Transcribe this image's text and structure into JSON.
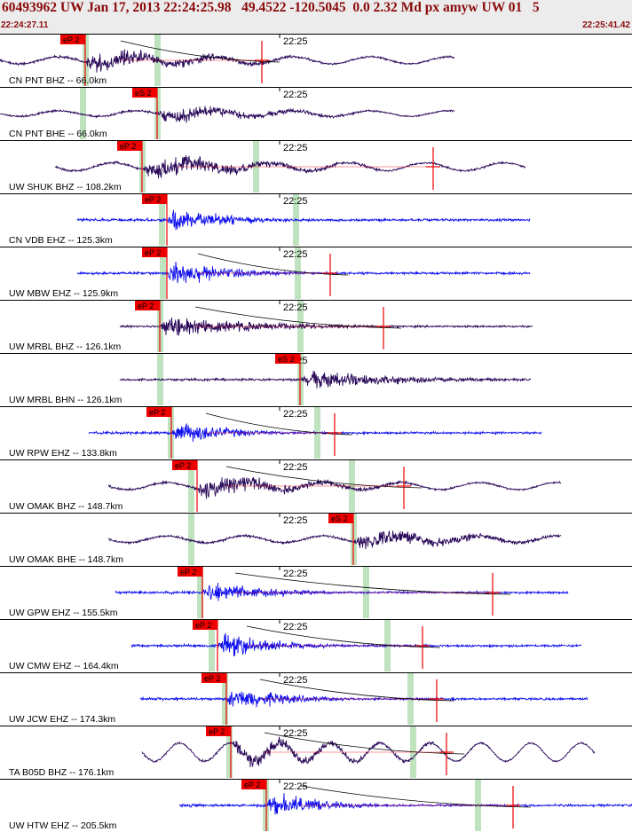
{
  "header": {
    "title": "60493962 UW Jan 17, 2013 22:24:25.98   49.4522 -120.5045  0.0 2.32 Md px amyw UW 01   5",
    "start_time": "22:24:27.11",
    "end_time": "22:25:41.42"
  },
  "minute_label": "22:25",
  "colors": {
    "broadband": "#2a0a5a",
    "short_period": "#1010ee",
    "pick_box": "#ee0000",
    "pick_line": "#ee0000",
    "predicted_window": "#bfe3bf",
    "title": "#8b0a0a"
  },
  "traces": [
    {
      "label": "CN PNT BHZ -- 66.0km",
      "color": "broadband",
      "pick": "eP 2",
      "window": [
        0,
        512
      ],
      "phase": [
        96,
        177
      ],
      "onset": 96,
      "amp": 0.9,
      "char": "surface",
      "extra": {
        "x": 295,
        "type": "end"
      },
      "curve": true
    },
    {
      "label": "CN PNT BHE -- 66.0km",
      "color": "broadband",
      "pick": "eS 2",
      "window": [
        0,
        512
      ],
      "phase": [
        93,
        177
      ],
      "onset": 177,
      "amp": 0.7,
      "char": "surface"
    },
    {
      "label": "UW SHUK BHZ -- 108.2km",
      "color": "broadband",
      "pick": "eP 2",
      "window": [
        62,
        592
      ],
      "phase": [
        160,
        288
      ],
      "onset": 160,
      "amp": 1.0,
      "char": "surface",
      "extra": {
        "x": 488,
        "type": "end"
      }
    },
    {
      "label": "CN VDB EHZ -- 125.3km",
      "color": "short_period",
      "pick": "eP 2",
      "window": [
        87,
        597
      ],
      "phase": [
        182,
        333
      ],
      "onset": 188,
      "amp": 0.95,
      "char": "sp"
    },
    {
      "label": "UW MBW EHZ -- 125.9km",
      "color": "short_period",
      "pick": "eP 2",
      "window": [
        87,
        597
      ],
      "phase": [
        183,
        335
      ],
      "onset": 188,
      "amp": 0.95,
      "char": "sp",
      "extra": {
        "x": 372,
        "type": "end"
      },
      "curve": true
    },
    {
      "label": "UW MRBL BHZ -- 126.1km",
      "color": "broadband",
      "pick": "eP 2",
      "window": [
        135,
        600
      ],
      "phase": [
        180,
        338
      ],
      "onset": 180,
      "amp": 0.9,
      "char": "bb",
      "extra": {
        "x": 432,
        "type": "end"
      },
      "curve": true
    },
    {
      "label": "UW MRBL BHN -- 126.1km",
      "color": "broadband",
      "pick": "eS 2",
      "window": [
        135,
        598
      ],
      "phase": [
        180,
        338
      ],
      "onset": 338,
      "amp": 0.85,
      "char": "bb"
    },
    {
      "label": "UW RPW EHZ -- 133.8km",
      "color": "short_period",
      "pick": "eP 2",
      "window": [
        100,
        610
      ],
      "phase": [
        192,
        357
      ],
      "onset": 193,
      "amp": 0.85,
      "char": "sp",
      "extra": {
        "x": 377,
        "type": "end"
      },
      "curve": true
    },
    {
      "label": "UW OMAK BHZ -- 148.7km",
      "color": "broadband",
      "pick": "eP 2",
      "window": [
        122,
        632
      ],
      "phase": [
        215,
        396
      ],
      "onset": 222,
      "amp": 0.9,
      "char": "surface",
      "extra": {
        "x": 455,
        "type": "end"
      },
      "curve": true
    },
    {
      "label": "UW OMAK BHE -- 148.7km",
      "color": "broadband",
      "pick": "eS 2",
      "window": [
        122,
        632
      ],
      "phase": [
        215,
        398
      ],
      "onset": 398,
      "amp": 0.85,
      "char": "surface"
    },
    {
      "label": "UW GPW EHZ -- 155.5km",
      "color": "short_period",
      "pick": "eP 2",
      "window": [
        130,
        640
      ],
      "phase": [
        225,
        412
      ],
      "onset": 228,
      "amp": 0.85,
      "char": "sp",
      "extra": {
        "x": 555,
        "type": "end"
      },
      "curve": true
    },
    {
      "label": "UW CMW EHZ -- 164.4km",
      "color": "short_period",
      "pick": "eP 2",
      "window": [
        148,
        655
      ],
      "phase": [
        238,
        436
      ],
      "onset": 245,
      "amp": 0.9,
      "char": "sp",
      "extra": {
        "x": 476,
        "type": "end"
      },
      "curve": true
    },
    {
      "label": "UW JCW EHZ -- 174.3km",
      "color": "short_period",
      "pick": "eP 2",
      "window": [
        158,
        662
      ],
      "phase": [
        253,
        462
      ],
      "onset": 255,
      "amp": 0.9,
      "char": "sp",
      "extra": {
        "x": 492,
        "type": "end"
      },
      "curve": true
    },
    {
      "label": "TA B05D BHZ -- 176.1km",
      "color": "broadband",
      "pick": "eP 2",
      "window": [
        160,
        670
      ],
      "phase": [
        258,
        465
      ],
      "onset": 260,
      "amp": 0.75,
      "char": "longperiod",
      "extra": {
        "x": 503,
        "type": "end"
      },
      "curve": true
    },
    {
      "label": "UW HTW EHZ -- 205.5km",
      "color": "short_period",
      "pick": "eP 2",
      "window": [
        202,
        712
      ],
      "phase": [
        299,
        538
      ],
      "onset": 300,
      "amp": 0.9,
      "char": "sp",
      "extra": {
        "x": 578,
        "type": "end"
      },
      "curve": true
    }
  ]
}
